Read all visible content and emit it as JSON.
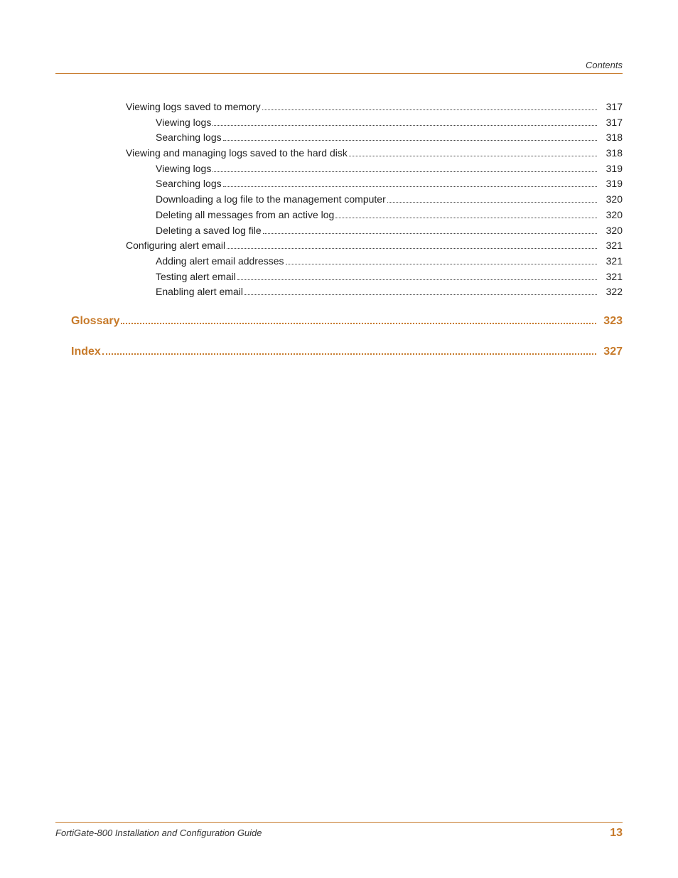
{
  "header": {
    "label": "Contents"
  },
  "toc": {
    "entries": [
      {
        "level": 1,
        "label": "Viewing logs saved to memory",
        "page": "317"
      },
      {
        "level": 2,
        "label": "Viewing logs",
        "page": "317"
      },
      {
        "level": 2,
        "label": "Searching logs",
        "page": "318"
      },
      {
        "level": 1,
        "label": "Viewing and managing logs saved to the hard disk",
        "page": "318"
      },
      {
        "level": 2,
        "label": "Viewing logs",
        "page": "319"
      },
      {
        "level": 2,
        "label": "Searching logs",
        "page": "319"
      },
      {
        "level": 2,
        "label": "Downloading a log file to the management computer",
        "page": "320"
      },
      {
        "level": 2,
        "label": "Deleting all messages from an active log",
        "page": "320"
      },
      {
        "level": 2,
        "label": "Deleting a saved log file",
        "page": "320"
      },
      {
        "level": 1,
        "label": "Configuring alert email",
        "page": "321"
      },
      {
        "level": 2,
        "label": "Adding alert email addresses",
        "page": "321"
      },
      {
        "level": 2,
        "label": "Testing alert email",
        "page": "321"
      },
      {
        "level": 2,
        "label": "Enabling alert email",
        "page": "322"
      }
    ],
    "headings": [
      {
        "label": "Glossary",
        "page": "323"
      },
      {
        "label": "Index",
        "page": "327"
      }
    ]
  },
  "footer": {
    "title": "FortiGate-800 Installation and Configuration Guide",
    "pagenum": "13"
  },
  "colors": {
    "accent": "#c77a2a",
    "text": "#222222"
  }
}
